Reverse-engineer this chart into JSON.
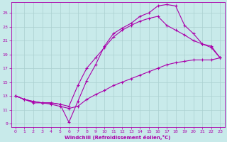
{
  "xlabel": "Windchill (Refroidissement éolien,°C)",
  "bg_color": "#c8eaea",
  "grid_color": "#aad0d0",
  "line_color": "#aa00aa",
  "xlim": [
    -0.5,
    23.5
  ],
  "ylim": [
    8.5,
    26.5
  ],
  "xticks": [
    0,
    1,
    2,
    3,
    4,
    5,
    6,
    7,
    8,
    9,
    10,
    11,
    12,
    13,
    14,
    15,
    16,
    17,
    18,
    19,
    20,
    21,
    22,
    23
  ],
  "yticks": [
    9,
    11,
    13,
    15,
    17,
    19,
    21,
    23,
    25
  ],
  "line1_x": [
    0,
    1,
    2,
    3,
    4,
    5,
    6,
    7,
    8,
    9,
    10,
    11,
    12,
    13,
    14,
    15,
    16,
    17,
    18,
    19,
    20,
    21,
    22,
    23
  ],
  "line1_y": [
    13.0,
    12.5,
    12.2,
    12.0,
    12.0,
    11.8,
    9.2,
    12.2,
    15.2,
    17.5,
    20.2,
    22.0,
    22.8,
    23.5,
    24.5,
    25.0,
    26.0,
    26.2,
    26.0,
    23.2,
    22.0,
    20.5,
    20.2,
    18.5
  ],
  "line2_x": [
    0,
    1,
    2,
    3,
    4,
    5,
    6,
    7,
    8,
    9,
    10,
    11,
    12,
    13,
    14,
    15,
    16,
    17,
    18,
    19,
    20,
    21,
    22,
    23
  ],
  "line2_y": [
    13.0,
    12.5,
    12.2,
    12.0,
    12.0,
    11.8,
    11.5,
    14.5,
    17.0,
    18.5,
    20.0,
    21.5,
    22.5,
    23.2,
    23.8,
    24.2,
    24.5,
    23.2,
    22.5,
    21.8,
    21.0,
    20.5,
    20.0,
    18.5
  ],
  "line3_x": [
    0,
    1,
    2,
    3,
    4,
    5,
    6,
    7,
    8,
    9,
    10,
    11,
    12,
    13,
    14,
    15,
    16,
    17,
    18,
    19,
    20,
    21,
    22,
    23
  ],
  "line3_y": [
    13.0,
    12.5,
    12.0,
    12.0,
    11.8,
    11.5,
    11.2,
    11.5,
    12.5,
    13.2,
    13.8,
    14.5,
    15.0,
    15.5,
    16.0,
    16.5,
    17.0,
    17.5,
    17.8,
    18.0,
    18.2,
    18.2,
    18.2,
    18.5
  ]
}
